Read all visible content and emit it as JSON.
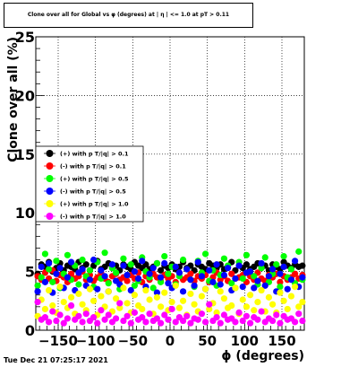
{
  "chart_data": {
    "type": "scatter",
    "title": "Clone  over all for Global vs φ (degrees) at | η | <= 1.0 at pT > 0.11",
    "xlabel": "ϕ (degrees)",
    "ylabel": "Clone  over all (%)",
    "xlim": [
      -180,
      180
    ],
    "ylim": [
      0,
      25
    ],
    "x_ticks": [
      -150,
      -100,
      -50,
      0,
      50,
      100,
      150
    ],
    "y_ticks": [
      0,
      5,
      10,
      15,
      20,
      25
    ],
    "x_tick_labels": [
      "−150",
      "−100",
      "−50",
      "0",
      "50",
      "100",
      "150"
    ],
    "y_tick_labels": [
      "0",
      "5",
      "10",
      "15",
      "20",
      "25"
    ],
    "grid": true,
    "legend_position": "middle-left",
    "bins": 72,
    "series": [
      {
        "name": "(+) with p T/|q| > 0.1",
        "color": "#000000",
        "values": [
          4.8,
          5.6,
          5.4,
          5.8,
          5.0,
          5.3,
          5.7,
          5.1,
          5.5,
          5.4,
          5.2,
          5.8,
          5.3,
          5.6,
          5.1,
          5.5,
          5.9,
          5.2,
          5.4,
          5.7,
          5.3,
          5.5,
          5.1,
          5.6,
          5.4,
          5.2,
          5.8,
          5.5,
          5.3,
          5.6,
          5.2,
          5.4,
          5.7,
          5.1,
          5.5,
          5.3,
          5.6,
          5.2,
          5.4,
          5.8,
          5.3,
          5.5,
          5.1,
          5.6,
          5.4,
          5.2,
          5.7,
          5.5,
          5.3,
          5.6,
          5.2,
          5.4,
          5.8,
          5.1,
          5.5,
          5.3,
          5.6,
          5.2,
          5.4,
          5.7,
          5.3,
          5.5,
          5.1,
          5.6,
          5.4,
          5.2,
          5.8,
          5.5,
          5.3,
          5.6,
          5.4,
          5.5
        ]
      },
      {
        "name": "(-) with p T/|q| > 0.1",
        "color": "#ff0000",
        "values": [
          4.6,
          4.3,
          4.9,
          4.4,
          5.1,
          4.2,
          4.7,
          4.5,
          4.1,
          4.8,
          4.4,
          4.6,
          5.0,
          4.3,
          4.7,
          4.2,
          4.5,
          4.9,
          4.4,
          4.1,
          4.6,
          4.8,
          4.3,
          4.5,
          4.2,
          4.7,
          4.4,
          4.9,
          4.1,
          4.6,
          4.3,
          4.8,
          4.5,
          4.2,
          4.7,
          4.4,
          4.6,
          4.1,
          4.9,
          4.3,
          4.5,
          4.8,
          4.2,
          4.6,
          4.4,
          4.7,
          4.1,
          4.5,
          4.9,
          4.3,
          4.6,
          4.2,
          4.8,
          4.4,
          4.5,
          4.7,
          4.1,
          4.6,
          4.3,
          4.9,
          4.4,
          4.2,
          4.7,
          4.5,
          4.8,
          4.1,
          4.6,
          4.3,
          4.5,
          4.8,
          4.4,
          4.7
        ]
      },
      {
        "name": "(+) with p T/|q| > 0.5",
        "color": "#00ff00",
        "values": [
          3.8,
          4.5,
          6.5,
          5.2,
          4.1,
          5.9,
          3.6,
          4.8,
          6.4,
          4.3,
          5.5,
          3.9,
          6.0,
          4.6,
          5.1,
          3.7,
          5.8,
          4.4,
          6.6,
          4.0,
          5.3,
          4.9,
          3.5,
          6.1,
          4.7,
          5.6,
          3.8,
          4.2,
          6.2,
          5.0,
          4.5,
          3.6,
          5.7,
          4.1,
          6.3,
          4.8,
          5.4,
          3.9,
          4.6,
          6.0,
          5.2,
          4.3,
          3.7,
          5.9,
          4.9,
          6.5,
          4.2,
          5.1,
          3.8,
          4.7,
          6.1,
          5.5,
          4.0,
          3.6,
          5.8,
          4.4,
          6.4,
          5.0,
          4.6,
          3.9,
          5.3,
          6.2,
          4.1,
          4.8,
          5.6,
          3.7,
          6.3,
          4.5,
          5.2,
          4.0,
          6.7,
          4.3
        ]
      },
      {
        "name": "(-) with p T/|q| > 0.5",
        "color": "#0000ff",
        "values": [
          3.3,
          5.4,
          4.1,
          5.7,
          3.2,
          4.8,
          5.3,
          3.6,
          4.5,
          5.8,
          3.4,
          4.9,
          5.2,
          3.8,
          4.3,
          6.0,
          3.5,
          5.1,
          4.6,
          3.3,
          5.6,
          4.2,
          3.9,
          5.5,
          4.7,
          3.4,
          5.0,
          4.4,
          5.9,
          3.7,
          4.8,
          5.3,
          3.2,
          4.5,
          5.7,
          4.0,
          3.6,
          5.4,
          4.9,
          3.3,
          5.2,
          4.3,
          3.8,
          5.8,
          4.6,
          3.5,
          5.1,
          4.1,
          5.6,
          3.9,
          4.7,
          5.3,
          3.4,
          4.4,
          5.5,
          3.7,
          4.9,
          5.0,
          3.6,
          4.2,
          5.7,
          3.8,
          4.6,
          5.2,
          3.3,
          4.8,
          5.4,
          3.5,
          4.3,
          5.9,
          3.7,
          4.5
        ]
      },
      {
        "name": "(+) with p T/|q| > 1.0",
        "color": "#ffff00",
        "values": [
          1.2,
          2.6,
          1.8,
          3.4,
          2.1,
          1.5,
          3.7,
          2.4,
          1.9,
          2.8,
          1.4,
          3.1,
          2.2,
          1.7,
          3.5,
          2.5,
          1.3,
          2.9,
          2.0,
          3.3,
          1.6,
          2.7,
          1.9,
          3.6,
          2.3,
          1.5,
          3.0,
          2.1,
          1.8,
          3.4,
          2.6,
          1.4,
          2.8,
          2.0,
          3.2,
          1.7,
          2.4,
          3.8,
          1.9,
          2.5,
          1.3,
          3.1,
          2.2,
          1.6,
          2.9,
          3.5,
          1.8,
          2.3,
          1.5,
          3.3,
          2.7,
          1.9,
          2.1,
          3.6,
          1.4,
          2.6,
          2.0,
          3.0,
          1.7,
          2.4,
          3.4,
          1.6,
          2.8,
          2.2,
          1.5,
          3.2,
          2.5,
          1.8,
          2.9,
          3.7,
          2.0,
          2.4
        ]
      },
      {
        "name": "(-) with p T/|q| > 1.0",
        "color": "#ff00ff",
        "values": [
          2.4,
          0.9,
          1.1,
          0.7,
          1.6,
          0.8,
          1.3,
          0.6,
          1.0,
          2.1,
          0.9,
          1.2,
          0.7,
          1.4,
          0.8,
          1.1,
          0.6,
          1.7,
          0.9,
          1.3,
          0.7,
          1.0,
          2.3,
          0.8,
          1.2,
          0.6,
          1.5,
          0.9,
          1.1,
          0.7,
          1.4,
          0.8,
          1.0,
          0.6,
          1.3,
          0.9,
          1.8,
          0.7,
          1.1,
          0.8,
          1.2,
          0.6,
          1.0,
          0.9,
          1.4,
          0.7,
          2.2,
          0.8,
          1.1,
          0.6,
          1.3,
          0.9,
          1.0,
          0.7,
          1.5,
          0.8,
          1.2,
          0.6,
          1.1,
          0.9,
          1.6,
          0.7,
          1.0,
          0.8,
          1.3,
          0.6,
          1.2,
          0.9,
          1.0,
          0.7,
          1.4,
          0.8
        ]
      }
    ]
  },
  "footer": {
    "timestamp": "Tue Dec 21 07:25:17 2021"
  }
}
